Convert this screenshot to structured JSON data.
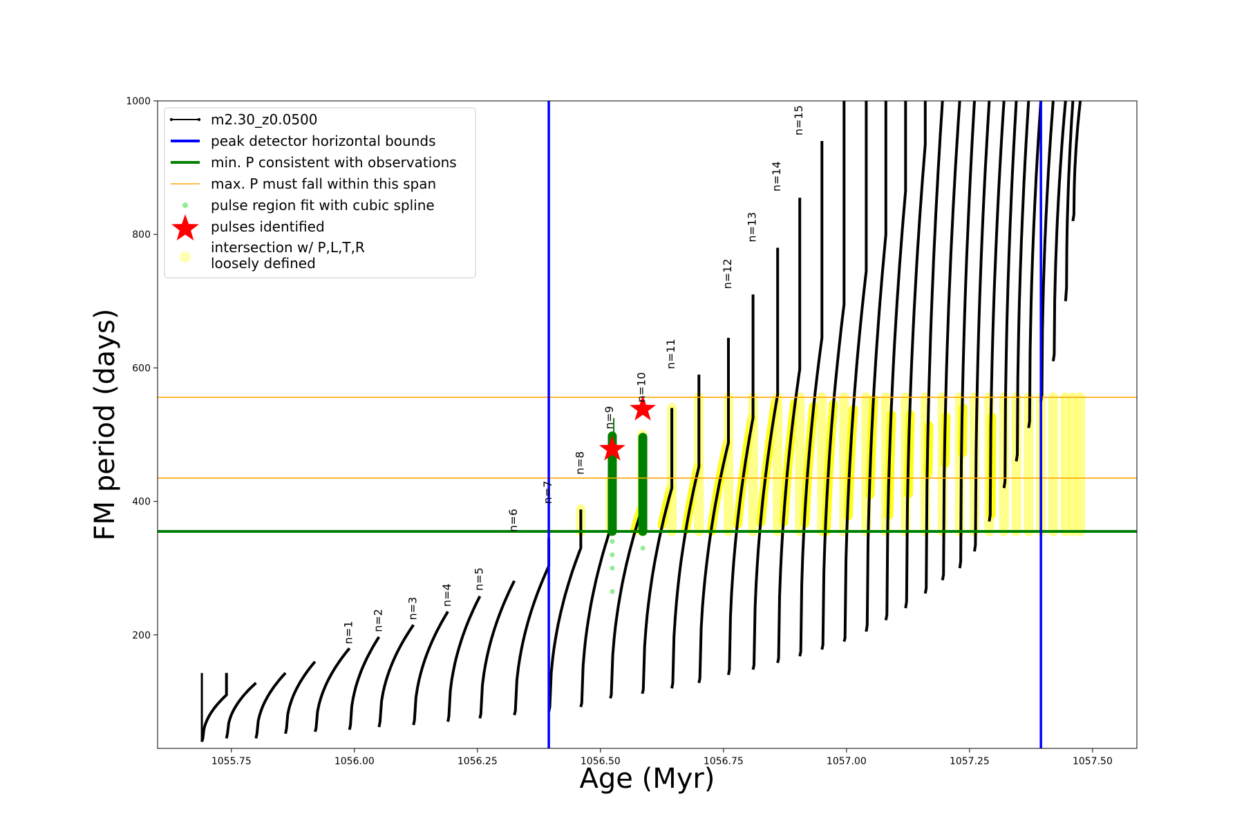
{
  "chart_data": {
    "type": "scatter",
    "title": "",
    "xlabel": "Age (Myr)",
    "ylabel": "FM period (days)",
    "xlim": [
      1055.6,
      1057.59
    ],
    "ylim": [
      30,
      1000
    ],
    "xticks": [
      1055.75,
      1056.0,
      1056.25,
      1056.5,
      1056.75,
      1057.0,
      1057.25,
      1057.5
    ],
    "xtick_labels": [
      "1055.75",
      "1056.00",
      "1056.25",
      "1056.50",
      "1056.75",
      "1057.00",
      "1057.25",
      "1057.50"
    ],
    "yticks": [
      200,
      400,
      600,
      800,
      1000
    ],
    "ytick_labels": [
      "200",
      "400",
      "600",
      "800",
      "1000"
    ],
    "grid": false,
    "legend_position": "top-left",
    "legend": [
      {
        "label": "m2.30_z0.0500",
        "kind": "line-marker",
        "color": "#000000"
      },
      {
        "label": "peak detector horizontal bounds",
        "kind": "line",
        "color": "#0000ff"
      },
      {
        "label": "min. P consistent with observations",
        "kind": "line",
        "color": "#008000"
      },
      {
        "label": "max. P must fall within this span",
        "kind": "line",
        "color": "#ffa500"
      },
      {
        "label": "pulse region fit with cubic spline",
        "kind": "dot",
        "color": "#90ee90"
      },
      {
        "label": "pulses identified",
        "kind": "star",
        "color": "#ff0000"
      },
      {
        "label": "intersection w/ P,L,T,R",
        "label2": "loosely defined",
        "kind": "dot",
        "color": "#ffffb3"
      }
    ],
    "vlines": [
      {
        "x": 1056.395,
        "color": "#0000ff"
      },
      {
        "x": 1057.395,
        "color": "#0000ff"
      }
    ],
    "hlines": [
      {
        "y": 355,
        "color": "#008000"
      },
      {
        "y": 435,
        "color": "#ffa500"
      },
      {
        "y": 556,
        "color": "#ffa500"
      }
    ],
    "series": [
      {
        "name": "m2.30_z0.0500",
        "pulses": [
          {
            "start": 1055.69,
            "end": 1055.74,
            "ymin": 45,
            "ymax": 110,
            "spike": 143,
            "dip": 40
          },
          {
            "start": 1055.74,
            "end": 1055.8,
            "ymin": 52,
            "ymax": 128,
            "spike": 0,
            "dip": 45
          },
          {
            "start": 1055.8,
            "end": 1055.86,
            "ymin": 52,
            "ymax": 143,
            "spike": 0,
            "dip": 45
          },
          {
            "start": 1055.86,
            "end": 1055.92,
            "ymin": 60,
            "ymax": 160,
            "spike": 0,
            "dip": 52
          },
          {
            "start": 1055.92,
            "end": 1055.99,
            "ymin": 60,
            "ymax": 180,
            "spike": 0,
            "dip": 55
          },
          {
            "start": 1055.99,
            "end": 1056.05,
            "ymin": 65,
            "ymax": 197,
            "spike": 0,
            "dip": 58
          },
          {
            "start": 1056.05,
            "end": 1056.12,
            "ymin": 70,
            "ymax": 215,
            "spike": 0,
            "dip": 62
          },
          {
            "start": 1056.12,
            "end": 1056.19,
            "ymin": 72,
            "ymax": 235,
            "spike": 0,
            "dip": 65
          },
          {
            "start": 1056.19,
            "end": 1056.255,
            "ymin": 78,
            "ymax": 258,
            "spike": 0,
            "dip": 70
          },
          {
            "start": 1056.255,
            "end": 1056.325,
            "ymin": 82,
            "ymax": 281,
            "spike": 0,
            "dip": 75
          },
          {
            "start": 1056.325,
            "end": 1056.395,
            "ymin": 86,
            "ymax": 303,
            "spike": 345,
            "dip": 80
          },
          {
            "start": 1056.395,
            "end": 1056.46,
            "ymin": 92,
            "ymax": 330,
            "spike": 388,
            "dip": 85
          },
          {
            "start": 1056.46,
            "end": 1056.52,
            "ymin": 98,
            "ymax": 358,
            "spike": 432,
            "dip": 92
          },
          {
            "start": 1056.52,
            "end": 1056.585,
            "ymin": 110,
            "ymax": 390,
            "spike": 500,
            "dip": 105
          },
          {
            "start": 1056.585,
            "end": 1056.645,
            "ymin": 118,
            "ymax": 420,
            "spike": 540,
            "dip": 112
          },
          {
            "start": 1056.645,
            "end": 1056.7,
            "ymin": 128,
            "ymax": 452,
            "spike": 590,
            "dip": 120
          },
          {
            "start": 1056.7,
            "end": 1056.76,
            "ymin": 135,
            "ymax": 488,
            "spike": 645,
            "dip": 128
          },
          {
            "start": 1056.76,
            "end": 1056.81,
            "ymin": 148,
            "ymax": 525,
            "spike": 710,
            "dip": 140
          },
          {
            "start": 1056.81,
            "end": 1056.86,
            "ymin": 155,
            "ymax": 560,
            "spike": 780,
            "dip": 148
          },
          {
            "start": 1056.86,
            "end": 1056.905,
            "ymin": 165,
            "ymax": 598,
            "spike": 855,
            "dip": 158
          },
          {
            "start": 1056.905,
            "end": 1056.95,
            "ymin": 175,
            "ymax": 645,
            "spike": 940,
            "dip": 168
          },
          {
            "start": 1056.95,
            "end": 1056.995,
            "ymin": 185,
            "ymax": 695,
            "spike": 1000,
            "dip": 178
          },
          {
            "start": 1056.995,
            "end": 1057.04,
            "ymin": 195,
            "ymax": 745,
            "spike": 1000,
            "dip": 190
          },
          {
            "start": 1057.04,
            "end": 1057.08,
            "ymin": 215,
            "ymax": 800,
            "spike": 1000,
            "dip": 205
          },
          {
            "start": 1057.08,
            "end": 1057.12,
            "ymin": 230,
            "ymax": 865,
            "spike": 1000,
            "dip": 222
          },
          {
            "start": 1057.12,
            "end": 1057.16,
            "ymin": 250,
            "ymax": 935,
            "spike": 1000,
            "dip": 240
          },
          {
            "start": 1057.16,
            "end": 1057.195,
            "ymin": 270,
            "ymax": 1000,
            "spike": 1000,
            "dip": 262
          },
          {
            "start": 1057.195,
            "end": 1057.23,
            "ymin": 290,
            "ymax": 1000,
            "spike": 1000,
            "dip": 282
          },
          {
            "start": 1057.23,
            "end": 1057.26,
            "ymin": 310,
            "ymax": 1000,
            "spike": 1000,
            "dip": 300
          },
          {
            "start": 1057.26,
            "end": 1057.29,
            "ymin": 335,
            "ymax": 1000,
            "spike": 1000,
            "dip": 325
          },
          {
            "start": 1057.29,
            "end": 1057.32,
            "ymin": 380,
            "ymax": 1000,
            "spike": 1000,
            "dip": 370
          },
          {
            "start": 1057.32,
            "end": 1057.345,
            "ymin": 430,
            "ymax": 1000,
            "spike": 1000,
            "dip": 420
          },
          {
            "start": 1057.345,
            "end": 1057.37,
            "ymin": 470,
            "ymax": 1000,
            "spike": 1000,
            "dip": 460
          },
          {
            "start": 1057.37,
            "end": 1057.395,
            "ymin": 520,
            "ymax": 1000,
            "spike": 1000,
            "dip": 510
          },
          {
            "start": 1057.395,
            "end": 1057.42,
            "ymin": 560,
            "ymax": 1000,
            "spike": 1000,
            "dip": 550
          },
          {
            "start": 1057.42,
            "end": 1057.445,
            "ymin": 620,
            "ymax": 1000,
            "spike": 1000,
            "dip": 610
          },
          {
            "start": 1057.445,
            "end": 1057.46,
            "ymin": 720,
            "ymax": 1000,
            "spike": 1000,
            "dip": 700
          },
          {
            "start": 1057.46,
            "end": 1057.475,
            "ymin": 830,
            "ymax": 1000,
            "spike": 1000,
            "dip": 820
          }
        ]
      },
      {
        "name": "pulses identified",
        "points": [
          [
            1056.524,
            478
          ],
          [
            1056.586,
            538
          ]
        ]
      },
      {
        "name": "pulse region fit with cubic spline",
        "points": [
          [
            1056.524,
            340
          ],
          [
            1056.524,
            320
          ],
          [
            1056.524,
            300
          ],
          [
            1056.524,
            265
          ],
          [
            1056.586,
            330
          ]
        ]
      }
    ],
    "annotations": [
      {
        "text": "n=1",
        "x": 1055.99,
        "y": 182
      },
      {
        "text": "n=2",
        "x": 1056.05,
        "y": 200
      },
      {
        "text": "n=3",
        "x": 1056.12,
        "y": 218
      },
      {
        "text": "n=4",
        "x": 1056.19,
        "y": 238
      },
      {
        "text": "n=5",
        "x": 1056.255,
        "y": 262
      },
      {
        "text": "n=6",
        "x": 1056.325,
        "y": 350
      },
      {
        "text": "n=7",
        "x": 1056.395,
        "y": 392
      },
      {
        "text": "n=8",
        "x": 1056.46,
        "y": 436
      },
      {
        "text": "n=9",
        "x": 1056.52,
        "y": 504
      },
      {
        "text": "n=10",
        "x": 1056.585,
        "y": 544
      },
      {
        "text": "n=11",
        "x": 1056.645,
        "y": 594
      },
      {
        "text": "n=12",
        "x": 1056.76,
        "y": 714
      },
      {
        "text": "n=13",
        "x": 1056.81,
        "y": 784
      },
      {
        "text": "n=14",
        "x": 1056.86,
        "y": 860
      },
      {
        "text": "n=15",
        "x": 1056.905,
        "y": 944
      }
    ]
  }
}
